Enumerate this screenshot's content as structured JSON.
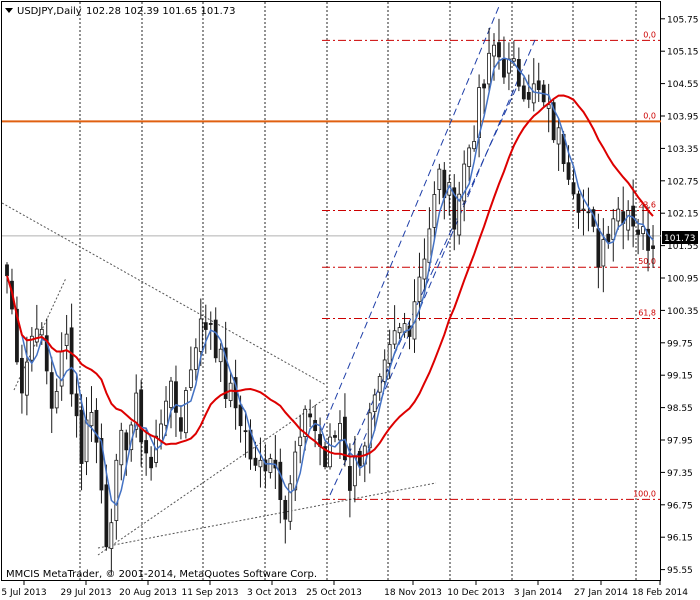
{
  "header": {
    "symbol": "USDJPY,Daily",
    "ohlc": "102.28 102.39 101.65 101.73"
  },
  "watermark": "MMCIS MetaTrader, © 2001-2014, MetaQuotes Software Corp.",
  "price_label": "101.73",
  "colors": {
    "background": "#ffffff",
    "candle": "#1a1a1a",
    "ma_fast": "#4472c4",
    "ma_slow": "#dd0000",
    "horizontal_line": "#e06010",
    "fib": "#cc0000",
    "channel": "#1f3fa8",
    "trendline": "#555555"
  },
  "chart_data": {
    "type": "candlestick",
    "ylim": [
      95.5,
      106.0
    ],
    "y_ticks": [
      "105.75",
      "105.15",
      "104.55",
      "103.95",
      "103.35",
      "102.75",
      "102.15",
      "101.55",
      "100.95",
      "100.35",
      "99.75",
      "99.15",
      "98.55",
      "97.95",
      "97.35",
      "96.75",
      "96.15",
      "95.55"
    ],
    "x_ticks": [
      "5 Jul 2013",
      "29 Jul 2013",
      "20 Aug 2013",
      "11 Sep 2013",
      "3 Oct 2013",
      "25 Oct 2013",
      "18 Nov 2013",
      "10 Dec 2013",
      "3 Jan 2014",
      "27 Jan 2014",
      "18 Feb 2014"
    ],
    "current_price": 101.73,
    "horizontal_line": 103.85,
    "fibonacci_levels": [
      {
        "label": "0,0",
        "price": 105.35
      },
      {
        "label": "0,0",
        "price": 103.85
      },
      {
        "label": "23,6",
        "price": 102.2
      },
      {
        "label": "50,0",
        "price": 101.15
      },
      {
        "label": "61,8",
        "price": 100.2
      },
      {
        "label": "100,0",
        "price": 96.85
      }
    ],
    "close_path": [
      [
        0,
        101.0
      ],
      [
        3,
        99.0
      ],
      [
        6,
        100.3
      ],
      [
        9,
        98.6
      ],
      [
        12,
        99.8
      ],
      [
        15,
        97.7
      ],
      [
        17,
        98.7
      ],
      [
        20,
        96.2
      ],
      [
        23,
        97.8
      ],
      [
        26,
        98.5
      ],
      [
        29,
        97.4
      ],
      [
        32,
        98.9
      ],
      [
        35,
        98.3
      ],
      [
        38,
        99.9
      ],
      [
        41,
        100.2
      ],
      [
        44,
        98.9
      ],
      [
        47,
        98.4
      ],
      [
        50,
        97.3
      ],
      [
        53,
        97.8
      ],
      [
        56,
        96.8
      ],
      [
        58,
        97.6
      ],
      [
        61,
        98.5
      ],
      [
        64,
        97.5
      ],
      [
        67,
        98.3
      ],
      [
        69,
        97.2
      ],
      [
        72,
        98.0
      ],
      [
        75,
        98.8
      ],
      [
        78,
        99.8
      ],
      [
        81,
        100.2
      ],
      [
        84,
        101.5
      ],
      [
        87,
        102.8
      ],
      [
        90,
        102.2
      ],
      [
        93,
        103.4
      ],
      [
        96,
        104.5
      ],
      [
        98,
        105.2
      ],
      [
        101,
        104.8
      ],
      [
        104,
        104.6
      ],
      [
        107,
        104.3
      ],
      [
        110,
        103.7
      ],
      [
        113,
        103.1
      ],
      [
        116,
        102.2
      ],
      [
        119,
        101.4
      ],
      [
        122,
        102.2
      ],
      [
        125,
        102.3
      ],
      [
        128,
        101.7
      ],
      [
        130,
        101.73
      ]
    ]
  }
}
